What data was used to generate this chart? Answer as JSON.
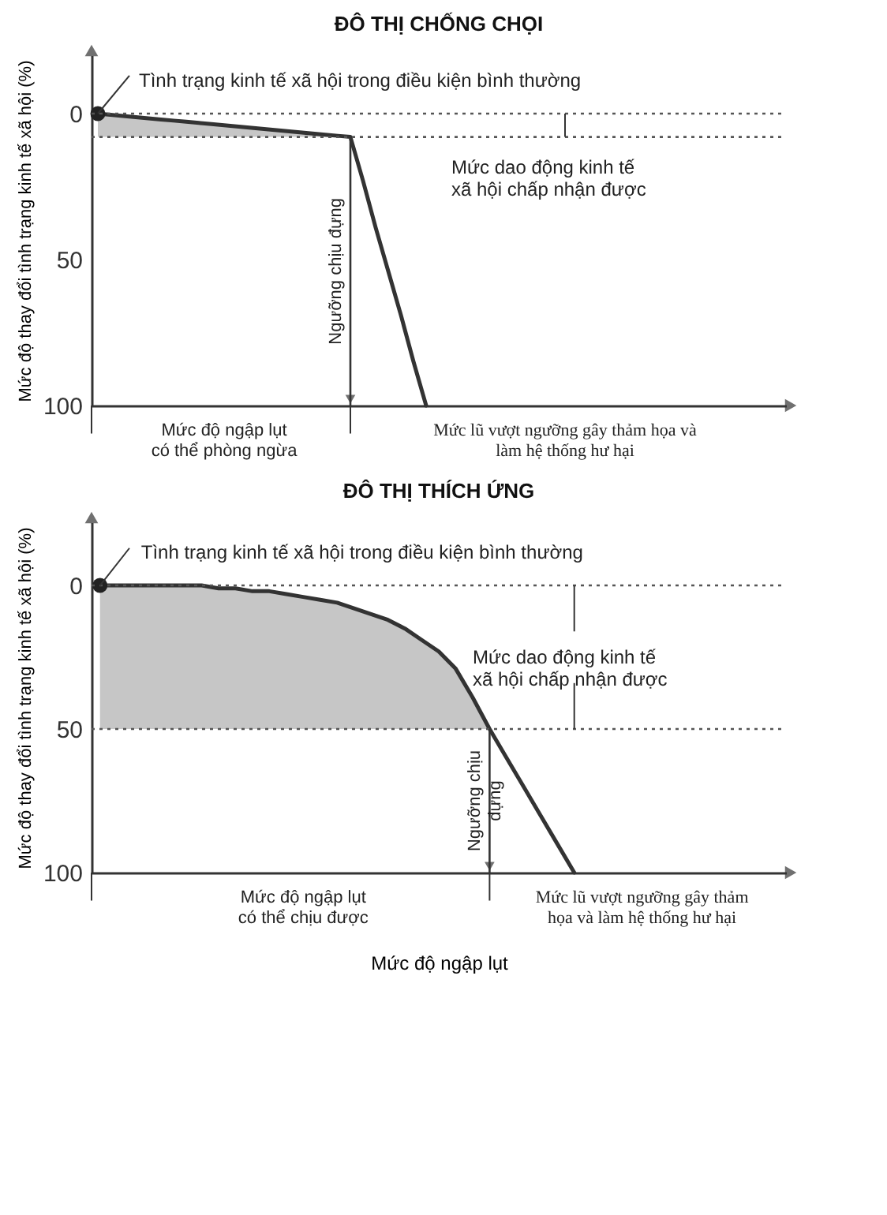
{
  "chart_data": [
    {
      "type": "line",
      "title": "ĐÔ THỊ CHỐNG CHỌI",
      "ylabel": "Mức độ thay đổi tình trạng kinh tế xã hội (%)",
      "categories": [
        null,
        null,
        null,
        null,
        null,
        null,
        null,
        null,
        null,
        null,
        null,
        null,
        null,
        null,
        null,
        null,
        null,
        null,
        null,
        null,
        null,
        null,
        null,
        null,
        null,
        null,
        null,
        null,
        null,
        null,
        null,
        null,
        null,
        null,
        null,
        null,
        null,
        null,
        null,
        null,
        null,
        null,
        null,
        null,
        null,
        null,
        null,
        null,
        null,
        null,
        null,
        null,
        null,
        null,
        null
      ],
      "ylim": [
        100,
        -20
      ],
      "yticks": [
        0,
        50,
        100
      ],
      "tick_labels": "y",
      "series": [
        {
          "color": "#333333",
          "values": [
            0,
            0.4,
            0.8,
            1.2,
            1.6,
            2,
            2.4,
            2.8,
            3.2,
            3.6,
            4,
            4.4,
            4.8,
            5.2,
            5.6,
            6,
            6.4,
            6.8,
            7.2,
            7.6,
            8,
            23,
            39,
            54,
            69,
            85,
            100,
            null,
            null,
            null,
            null,
            null,
            null,
            null,
            null,
            null,
            null,
            null,
            null,
            null,
            null,
            null,
            null,
            null,
            null,
            null,
            null,
            null,
            null,
            null,
            null,
            null,
            null,
            null,
            null
          ],
          "lower": [
            0,
            0.4,
            0.8,
            1.2,
            1.6,
            2,
            2.4,
            2.8,
            3.2,
            3.6,
            4,
            4.4,
            4.8,
            5.2,
            5.6,
            6,
            6.4,
            6.8,
            7.2,
            7.6,
            8,
            null,
            null,
            null,
            null,
            null,
            null,
            null,
            null,
            null,
            null,
            null,
            null,
            null,
            null,
            null,
            null,
            null,
            null,
            null,
            null,
            null,
            null,
            null,
            null,
            null,
            null,
            null,
            null,
            null,
            null,
            null,
            null,
            null,
            null
          ],
          "upper": [
            8,
            8,
            8,
            8,
            8,
            8,
            8,
            8,
            8,
            8,
            8,
            8,
            8,
            8,
            8,
            8,
            8,
            8,
            8,
            8,
            8,
            null,
            null,
            null,
            null,
            null,
            null,
            null,
            null,
            null,
            null,
            null,
            null,
            null,
            null,
            null,
            null,
            null,
            null,
            null,
            null,
            null,
            null,
            null,
            null,
            null,
            null,
            null,
            null,
            null,
            null,
            null,
            null,
            null,
            null
          ]
        },
        {
          "type": "scatter",
          "color": "#222222",
          "marker": "circle",
          "values": [
            0,
            null,
            null,
            null,
            null,
            null,
            null,
            null,
            null,
            null,
            null,
            null,
            null,
            null,
            null,
            null,
            null,
            null,
            null,
            null,
            null,
            null,
            null,
            null,
            null,
            null,
            null,
            null,
            null,
            null,
            null,
            null,
            null,
            null,
            null,
            null,
            null,
            null,
            null,
            null,
            null,
            null,
            null,
            null,
            null,
            null,
            null,
            null,
            null,
            null,
            null,
            null,
            null,
            null,
            null
          ]
        }
      ],
      "ref_lines": [
        {
          "axis": "y",
          "value": 0,
          "line_style": "dotted"
        },
        {
          "axis": "y",
          "value": 8,
          "line_style": "dotted"
        }
      ],
      "annotations": [
        "Tình trạng kinh tế xã hội trong điều kiện bình thường",
        "Mức dao động kinh tế\nxã hội chấp nhận được",
        "Ngưỡng chịu đựng",
        "Mức độ ngập lụt\ncó thể phòng ngừa",
        "Mức lũ vượt ngưỡng gây thảm họa và\nlàm hệ thống hư hại"
      ]
    },
    {
      "type": "line",
      "title": "ĐÔ THỊ THÍCH ỨNG",
      "xlabel": "Mức độ ngập lụt",
      "ylabel": "Mức độ thay đổi tình trạng kinh tế xã hội (%)",
      "categories": [
        null,
        null,
        null,
        null,
        null,
        null,
        null,
        null,
        null,
        null,
        null,
        null,
        null,
        null,
        null,
        null,
        null,
        null,
        null,
        null,
        null,
        null,
        null,
        null,
        null,
        null,
        null,
        null,
        null,
        null,
        null,
        null,
        null,
        null,
        null,
        null,
        null,
        null,
        null,
        null,
        null
      ],
      "ylim": [
        100,
        -22
      ],
      "yticks": [
        0,
        50,
        100
      ],
      "tick_labels": "y",
      "series": [
        {
          "color": "#333333",
          "values": [
            0,
            0,
            0,
            0,
            0,
            0,
            0,
            1,
            1,
            2,
            2,
            3,
            4,
            5,
            6,
            8,
            10,
            12,
            15,
            19,
            23,
            29,
            39,
            50,
            60,
            70,
            80,
            90,
            100,
            null,
            null,
            null,
            null,
            null,
            null,
            null,
            null,
            null,
            null,
            null,
            null
          ],
          "lower": [
            0,
            0,
            0,
            0,
            0,
            0,
            0,
            1,
            1,
            2,
            2,
            3,
            4,
            5,
            6,
            8,
            10,
            12,
            15,
            19,
            23,
            29,
            39,
            50,
            null,
            null,
            null,
            null,
            null,
            null,
            null,
            null,
            null,
            null,
            null,
            null,
            null,
            null,
            null,
            null,
            null
          ],
          "upper": [
            50,
            50,
            50,
            50,
            50,
            50,
            50,
            50,
            50,
            50,
            50,
            50,
            50,
            50,
            50,
            50,
            50,
            50,
            50,
            50,
            50,
            50,
            50,
            50,
            null,
            null,
            null,
            null,
            null,
            null,
            null,
            null,
            null,
            null,
            null,
            null,
            null,
            null,
            null,
            null,
            null
          ]
        },
        {
          "type": "scatter",
          "color": "#222222",
          "marker": "circle",
          "values": [
            0,
            null,
            null,
            null,
            null,
            null,
            null,
            null,
            null,
            null,
            null,
            null,
            null,
            null,
            null,
            null,
            null,
            null,
            null,
            null,
            null,
            null,
            null,
            null,
            null,
            null,
            null,
            null,
            null,
            null,
            null,
            null,
            null,
            null,
            null,
            null,
            null,
            null,
            null,
            null,
            null
          ]
        }
      ],
      "ref_lines": [
        {
          "axis": "y",
          "value": 0,
          "line_style": "dotted"
        },
        {
          "axis": "y",
          "value": 50,
          "line_style": "dotted"
        }
      ],
      "annotations": [
        "Tình trạng kinh tế xã hội trong điều kiện bình thường",
        "Mức dao động kinh tế\nxã hội chấp nhận được",
        "Ngưỡng chịu\nđựng",
        "Mức độ ngập lụt\ncó thể chịu được",
        "Mức lũ vượt ngưỡng gây thảm\nhọa và làm hệ thống hư hại"
      ]
    }
  ]
}
